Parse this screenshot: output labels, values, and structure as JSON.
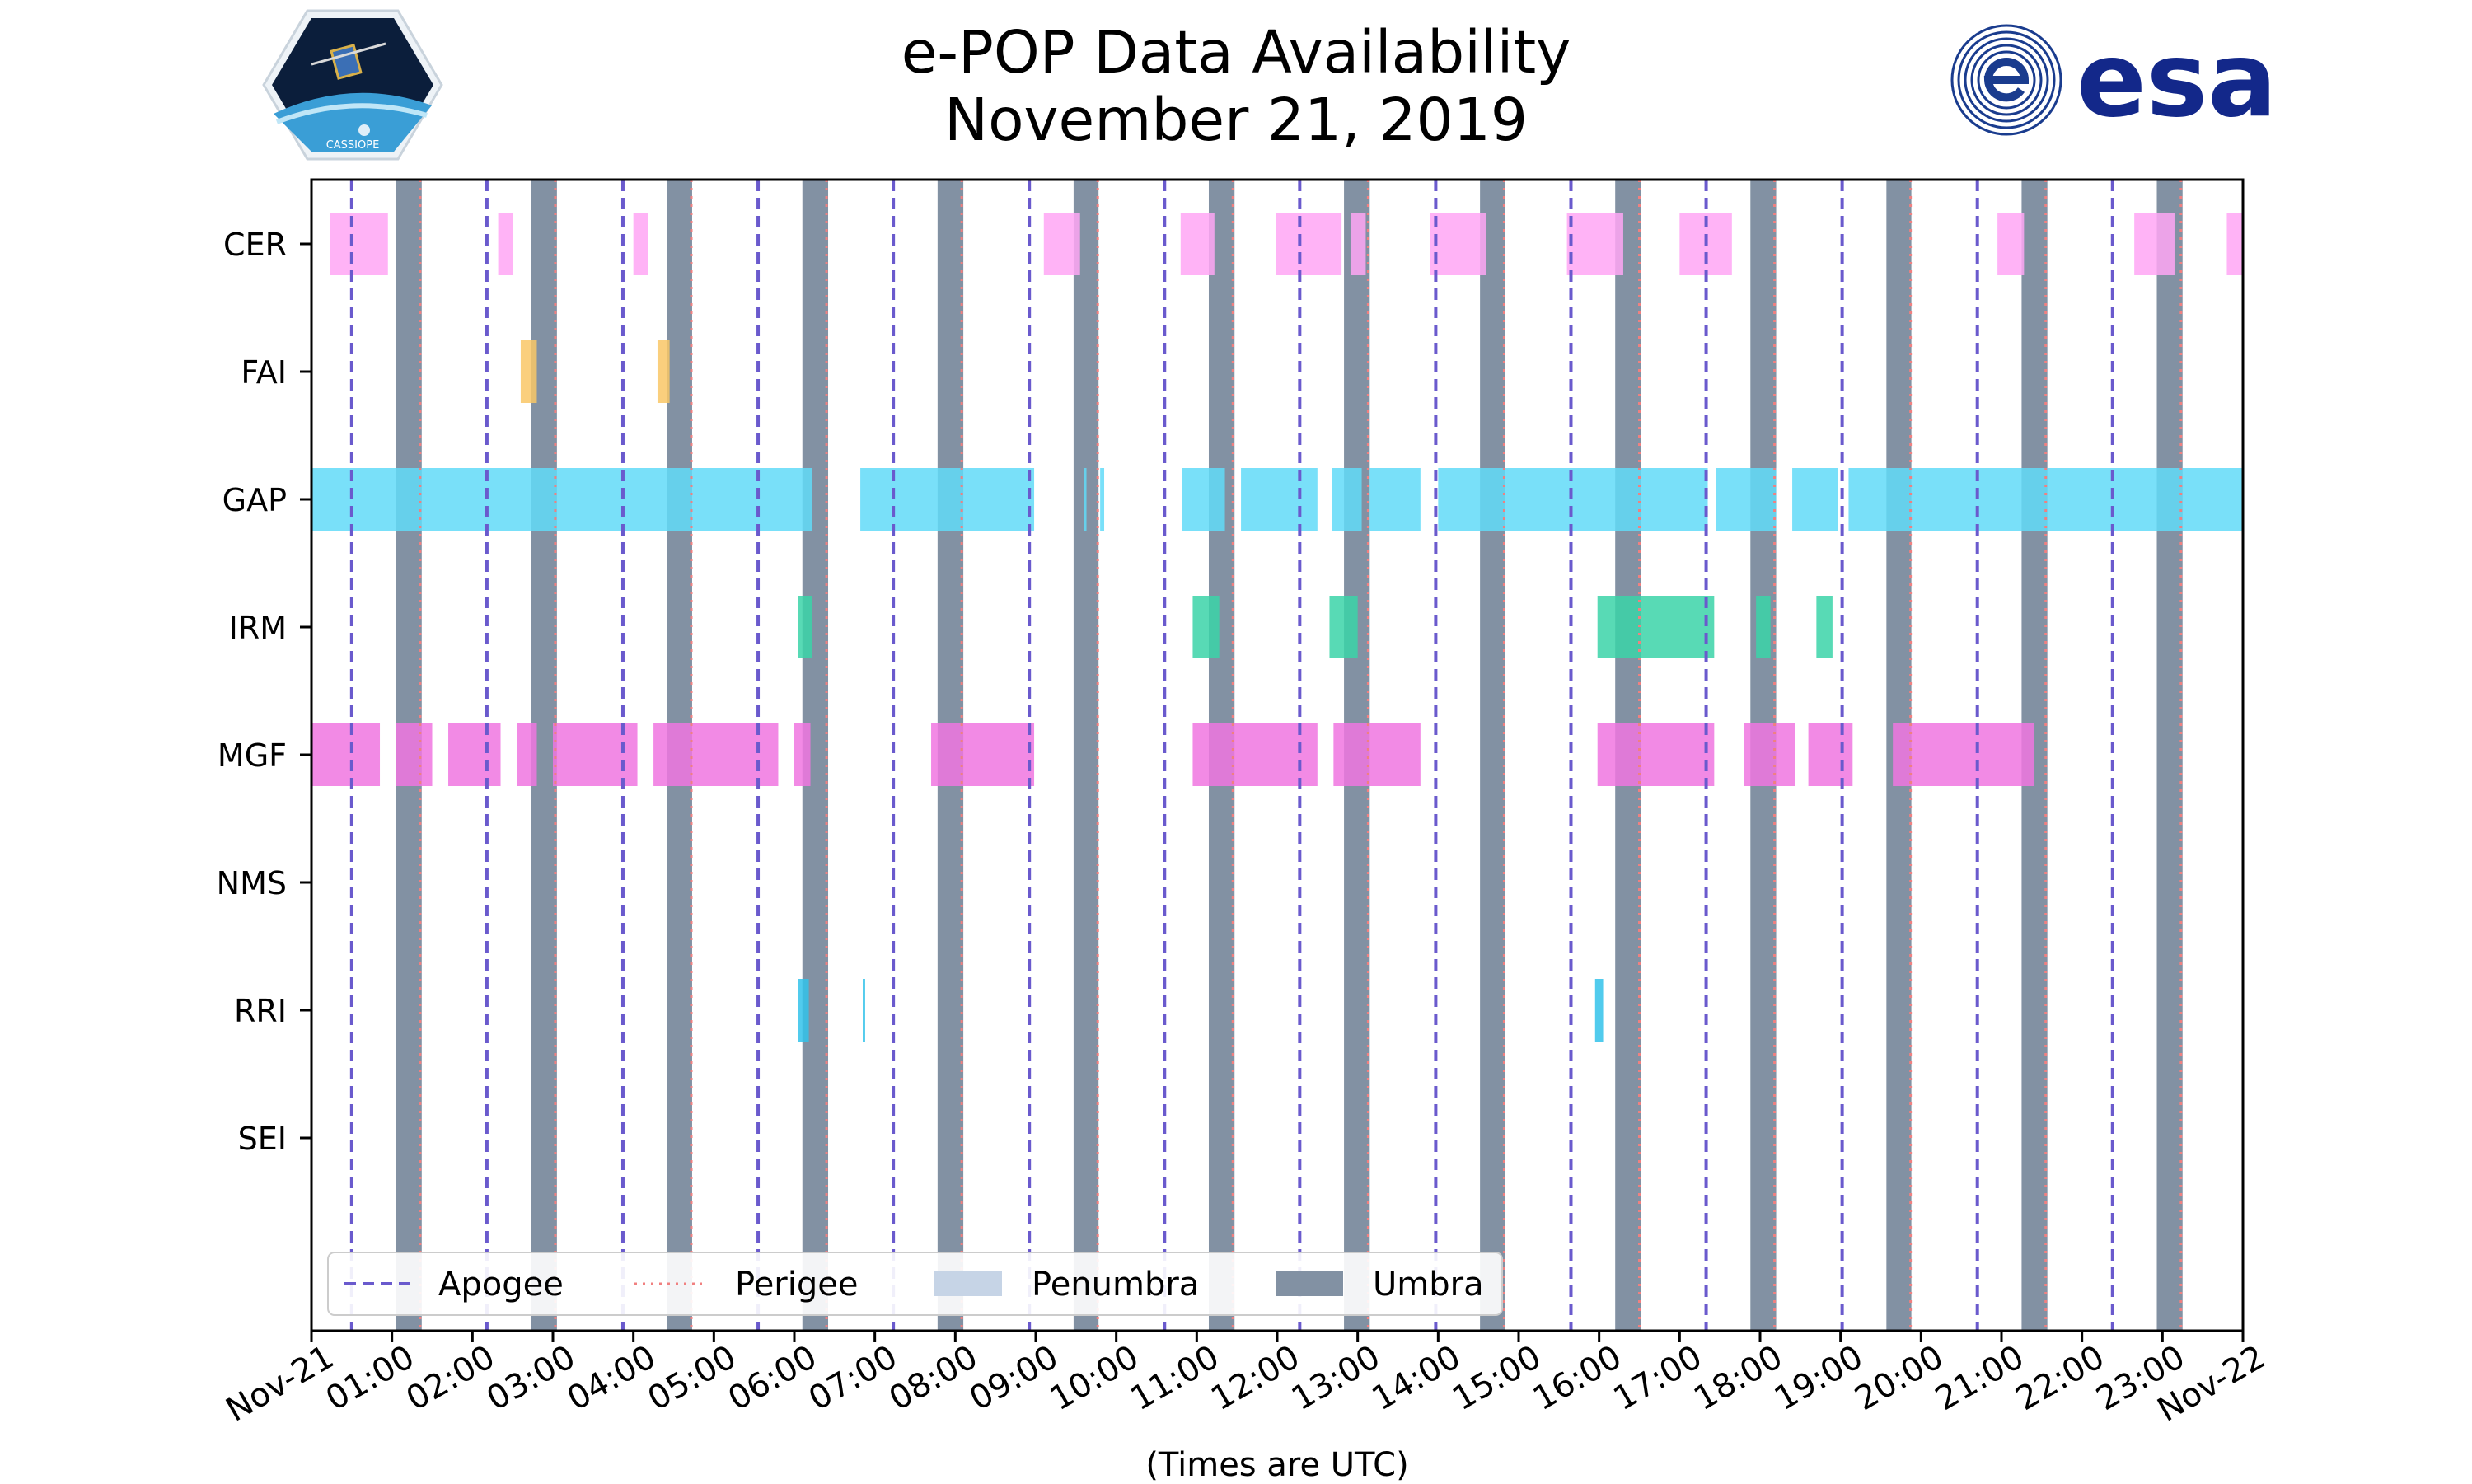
{
  "title_line1": "e-POP Data Availability",
  "title_line2": "November 21, 2019",
  "x_note": "(Times are UTC)",
  "logos": {
    "left": "CASSIOPE",
    "right": "esa"
  },
  "colors": {
    "apogee": "#6a5acd",
    "perigee": "#f08080",
    "penumbra": "#c6d4e6",
    "umbra": "#8291a3",
    "CER": "#ffa6f5",
    "FAI": "#f9c766",
    "GAP": "#61dbf8",
    "IRM": "#3bd4a8",
    "MGF": "#f076e0",
    "RRI": "#33c2ea"
  },
  "chart_data": {
    "type": "timeline",
    "title": "e-POP Data Availability\nNovember 21, 2019",
    "xlabel": "(Times are UTC)",
    "xlim_hours": [
      0,
      24
    ],
    "x_ticks": [
      "Nov-21",
      "01:00",
      "02:00",
      "03:00",
      "04:00",
      "05:00",
      "06:00",
      "07:00",
      "08:00",
      "09:00",
      "10:00",
      "11:00",
      "12:00",
      "13:00",
      "14:00",
      "15:00",
      "16:00",
      "17:00",
      "18:00",
      "19:00",
      "20:00",
      "21:00",
      "22:00",
      "23:00",
      "Nov-22"
    ],
    "instruments": [
      "CER",
      "FAI",
      "GAP",
      "IRM",
      "MGF",
      "NMS",
      "RRI",
      "SEI"
    ],
    "apogee_hours": [
      0.5,
      2.18,
      3.87,
      5.55,
      7.23,
      8.92,
      10.6,
      12.28,
      13.97,
      15.65,
      17.33,
      19.02,
      20.7,
      22.38
    ],
    "perigee_hours": [
      1.35,
      3.03,
      4.72,
      6.4,
      8.08,
      9.77,
      11.45,
      13.13,
      14.82,
      16.5,
      18.18,
      19.87,
      21.55,
      23.23
    ],
    "umbra_intervals": [
      [
        1.05,
        1.37
      ],
      [
        2.73,
        3.05
      ],
      [
        4.42,
        4.73
      ],
      [
        6.1,
        6.42
      ],
      [
        7.78,
        8.1
      ],
      [
        9.47,
        9.78
      ],
      [
        11.15,
        11.47
      ],
      [
        12.83,
        13.15
      ],
      [
        14.52,
        14.83
      ],
      [
        16.2,
        16.52
      ],
      [
        17.88,
        18.2
      ],
      [
        19.57,
        19.88
      ],
      [
        21.25,
        21.57
      ],
      [
        22.93,
        23.25
      ]
    ],
    "availability": {
      "CER": [
        [
          0.23,
          0.95
        ],
        [
          2.32,
          2.5
        ],
        [
          4.0,
          4.18
        ],
        [
          9.1,
          9.55
        ],
        [
          10.8,
          11.22
        ],
        [
          11.98,
          12.8
        ],
        [
          12.92,
          13.1
        ],
        [
          13.9,
          14.6
        ],
        [
          15.6,
          16.3
        ],
        [
          17.0,
          17.65
        ],
        [
          20.95,
          21.28
        ],
        [
          22.65,
          23.15
        ],
        [
          23.8,
          24.0
        ]
      ],
      "FAI": [
        [
          2.6,
          2.8
        ],
        [
          4.3,
          4.45
        ]
      ],
      "GAP": [
        [
          0.0,
          6.22
        ],
        [
          6.82,
          8.98
        ],
        [
          9.6,
          9.63
        ],
        [
          9.8,
          9.85
        ],
        [
          10.82,
          11.35
        ],
        [
          11.55,
          12.5
        ],
        [
          12.68,
          13.05
        ],
        [
          13.15,
          13.78
        ],
        [
          14.0,
          17.35
        ],
        [
          17.45,
          18.2
        ],
        [
          18.4,
          18.97
        ],
        [
          19.1,
          24.0
        ]
      ],
      "IRM": [
        [
          6.05,
          6.22
        ],
        [
          10.95,
          11.28
        ],
        [
          12.65,
          13.0
        ],
        [
          15.98,
          17.43
        ],
        [
          17.95,
          18.13
        ],
        [
          18.7,
          18.9
        ]
      ],
      "MGF": [
        [
          0.0,
          0.85
        ],
        [
          1.05,
          1.5
        ],
        [
          1.7,
          2.35
        ],
        [
          2.55,
          2.8
        ],
        [
          3.0,
          4.05
        ],
        [
          4.25,
          5.8
        ],
        [
          6.0,
          6.2
        ],
        [
          7.7,
          8.98
        ],
        [
          10.95,
          12.5
        ],
        [
          12.7,
          13.78
        ],
        [
          15.98,
          17.43
        ],
        [
          17.8,
          18.43
        ],
        [
          18.6,
          19.15
        ],
        [
          19.65,
          21.4
        ]
      ],
      "NMS": [],
      "RRI": [
        [
          6.05,
          6.18
        ],
        [
          6.85,
          6.88
        ],
        [
          15.95,
          16.05
        ]
      ],
      "SEI": []
    },
    "legend": {
      "placement": "bottom-left",
      "entries": [
        "Apogee",
        "Perigee",
        "Penumbra",
        "Umbra"
      ]
    }
  }
}
